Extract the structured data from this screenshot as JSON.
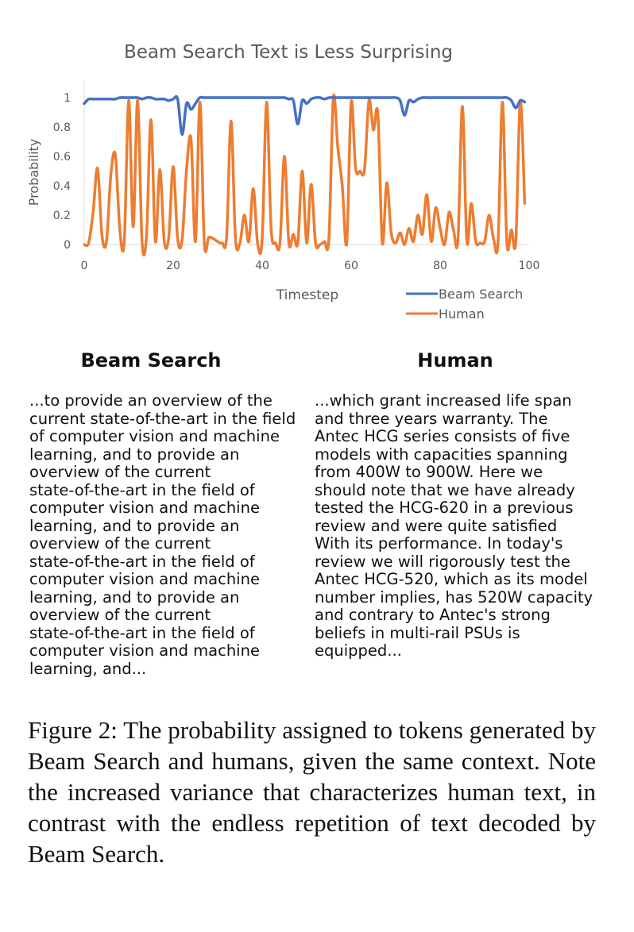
{
  "chart_data": {
    "type": "line",
    "title": "Beam Search Text is Less Surprising",
    "xlabel": "Timestep",
    "ylabel": "Probability",
    "xlim": [
      0,
      100
    ],
    "ylim": [
      0,
      1
    ],
    "x_ticks": [
      "0",
      "20",
      "40",
      "60",
      "80",
      "100"
    ],
    "y_ticks": [
      "0",
      "0.2",
      "0.4",
      "0.6",
      "0.8",
      "1"
    ],
    "grid": false,
    "legend": "bottom-right",
    "series": [
      {
        "name": "Beam Search",
        "color": "#4472c4",
        "values": [
          0.96,
          0.99,
          0.99,
          0.99,
          0.99,
          0.99,
          0.99,
          0.99,
          1.0,
          1.0,
          1.0,
          1.0,
          1.0,
          0.99,
          1.0,
          1.0,
          0.99,
          0.99,
          0.99,
          0.98,
          0.99,
          0.99,
          0.75,
          0.96,
          0.92,
          0.96,
          1.0,
          1.0,
          1.0,
          1.0,
          1.0,
          1.0,
          1.0,
          1.0,
          1.0,
          1.0,
          1.0,
          1.0,
          1.0,
          1.0,
          1.0,
          1.0,
          1.0,
          1.0,
          1.0,
          1.0,
          0.99,
          0.98,
          0.82,
          0.98,
          0.96,
          0.99,
          1.0,
          1.0,
          0.99,
          1.0,
          1.0,
          1.0,
          1.0,
          1.0,
          1.0,
          1.0,
          1.0,
          1.0,
          1.0,
          1.0,
          1.0,
          1.0,
          1.0,
          1.0,
          1.0,
          0.98,
          0.88,
          0.98,
          0.97,
          0.99,
          1.0,
          1.0,
          1.0,
          1.0,
          1.0,
          1.0,
          1.0,
          1.0,
          1.0,
          1.0,
          1.0,
          1.0,
          1.0,
          1.0,
          1.0,
          1.0,
          1.0,
          1.0,
          1.0,
          1.0,
          0.98,
          0.93,
          0.98,
          0.97
        ]
      },
      {
        "name": "Human",
        "color": "#ed7d31",
        "values": [
          0.0,
          0.01,
          0.22,
          0.52,
          0.06,
          0.02,
          0.48,
          0.61,
          0.1,
          0.02,
          0.98,
          0.12,
          0.98,
          0.02,
          0.06,
          0.85,
          0.02,
          0.51,
          0.02,
          0.05,
          0.53,
          0.04,
          0.03,
          0.51,
          0.72,
          0.02,
          0.97,
          0.01,
          0.05,
          0.04,
          0.02,
          0.01,
          0.05,
          0.84,
          0.04,
          0.01,
          0.2,
          0.02,
          0.38,
          0.0,
          0.04,
          0.97,
          0.11,
          0.01,
          0.01,
          0.6,
          0.01,
          0.07,
          0.01,
          0.5,
          0.01,
          0.41,
          0.01,
          0.0,
          0.02,
          0.04,
          1.0,
          0.66,
          0.4,
          0.01,
          0.97,
          0.52,
          0.5,
          0.51,
          0.98,
          0.78,
          0.89,
          0.01,
          0.42,
          0.08,
          0.01,
          0.08,
          0.0,
          0.11,
          0.02,
          0.2,
          0.07,
          0.34,
          0.02,
          0.25,
          0.11,
          0.0,
          0.22,
          0.1,
          0.03,
          0.94,
          0.02,
          0.28,
          0.02,
          0.01,
          0.02,
          0.2,
          0.04,
          0.01,
          0.97,
          0.01,
          0.1,
          0.02,
          0.98,
          0.28
        ]
      }
    ]
  },
  "columns": {
    "left_heading": "Beam Search",
    "right_heading": "Human",
    "left_text": "...to provide an overview of the\ncurrent state-of-the-art in the field\nof computer vision and machine\nlearning, and to provide an\noverview of the current\nstate-of-the-art in the field of\ncomputer vision and machine\nlearning, and to provide an\noverview of the current\nstate-of-the-art in the field of\ncomputer vision and machine\nlearning, and to provide an\noverview of the current\nstate-of-the-art in the field of\ncomputer vision and machine\nlearning, and...",
    "right_text": "...which grant increased life span\nand three years warranty. The\nAntec HCG series consists of five\nmodels with capacities spanning\nfrom 400W to 900W. Here we\nshould note that we have already\ntested the HCG-620 in a previous\nreview and were quite satisfied\nWith its performance. In today's\nreview we will rigorously test the\nAntec HCG-520, which as its model\nnumber implies, has 520W capacity\nand contrary to Antec's strong\nbeliefs in multi-rail PSUs is\nequipped..."
  },
  "caption": "Figure 2:  The probability assigned to tokens generated by Beam Search and humans, given the same context.  Note the increased variance that characterizes human text, in contrast with the endless repetition of text decoded by Beam Search."
}
